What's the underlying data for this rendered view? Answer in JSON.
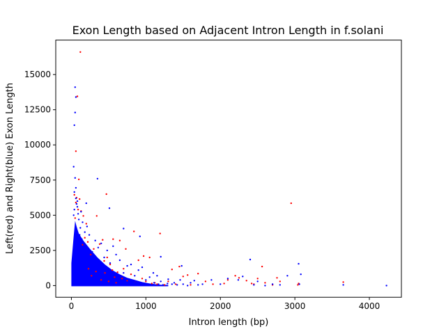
{
  "chart_data": {
    "type": "scatter",
    "title": "Exon Length based on Adjacent Intron Length in f.solani",
    "xlabel": "Intron length (bp)",
    "ylabel": "Left(red) and Right(blue) Exon Length",
    "xlim": [
      -210,
      4430
    ],
    "ylim": [
      -830,
      17450
    ],
    "xticks": [
      0,
      1000,
      2000,
      3000,
      4000
    ],
    "yticks": [
      0,
      2500,
      5000,
      7500,
      10000,
      12500,
      15000
    ],
    "grid": false,
    "series": [
      {
        "color": "#ff0000",
        "points": [
          [
            120,
            16600
          ],
          [
            80,
            13450
          ],
          [
            60,
            9550
          ],
          [
            100,
            7550
          ],
          [
            40,
            6450
          ],
          [
            70,
            6250
          ],
          [
            110,
            6150
          ],
          [
            130,
            5300
          ],
          [
            160,
            4950
          ],
          [
            200,
            4400
          ],
          [
            340,
            4950
          ],
          [
            470,
            6500
          ],
          [
            840,
            3850
          ],
          [
            1190,
            3700
          ],
          [
            2950,
            5850
          ],
          [
            560,
            3300
          ],
          [
            650,
            3200
          ],
          [
            420,
            3250
          ],
          [
            380,
            2950
          ],
          [
            730,
            2600
          ],
          [
            970,
            2100
          ],
          [
            1050,
            2000
          ],
          [
            900,
            1800
          ],
          [
            1350,
            1150
          ],
          [
            1450,
            1350
          ],
          [
            1500,
            650
          ],
          [
            1560,
            750
          ],
          [
            1700,
            850
          ],
          [
            1800,
            300
          ],
          [
            2050,
            150
          ],
          [
            2100,
            400
          ],
          [
            2200,
            700
          ],
          [
            2250,
            550
          ],
          [
            2350,
            350
          ],
          [
            2420,
            150
          ],
          [
            2500,
            500
          ],
          [
            2560,
            1350
          ],
          [
            2600,
            200
          ],
          [
            2760,
            550
          ],
          [
            3050,
            150
          ],
          [
            3040,
            50
          ],
          [
            3650,
            250
          ],
          [
            1000,
            300
          ],
          [
            1080,
            150
          ],
          [
            1120,
            200
          ],
          [
            950,
            500
          ],
          [
            860,
            250
          ],
          [
            800,
            800
          ],
          [
            750,
            350
          ],
          [
            700,
            1200
          ],
          [
            620,
            950
          ],
          [
            580,
            600
          ],
          [
            520,
            1500
          ],
          [
            480,
            2000
          ],
          [
            440,
            1750
          ],
          [
            300,
            2600
          ],
          [
            260,
            2200
          ],
          [
            220,
            3100
          ],
          [
            180,
            3400
          ],
          [
            150,
            2900
          ],
          [
            90,
            5400
          ],
          [
            60,
            5900
          ],
          [
            50,
            4800
          ],
          [
            230,
            1200
          ],
          [
            270,
            700
          ],
          [
            330,
            1000
          ],
          [
            400,
            400
          ],
          [
            450,
            900
          ],
          [
            500,
            300
          ],
          [
            550,
            1100
          ],
          [
            600,
            200
          ],
          [
            680,
            500
          ],
          [
            1150,
            100
          ],
          [
            1250,
            50
          ],
          [
            1300,
            300
          ],
          [
            1400,
            100
          ],
          [
            1600,
            50
          ],
          [
            1900,
            100
          ],
          [
            2450,
            100
          ],
          [
            2700,
            50
          ],
          [
            2800,
            300
          ]
        ]
      },
      {
        "color": "#0000ff",
        "points": [
          [
            50,
            14100
          ],
          [
            60,
            13400
          ],
          [
            50,
            12300
          ],
          [
            40,
            11400
          ],
          [
            30,
            8450
          ],
          [
            50,
            7650
          ],
          [
            350,
            7600
          ],
          [
            60,
            6950
          ],
          [
            40,
            6650
          ],
          [
            80,
            6000
          ],
          [
            200,
            5850
          ],
          [
            510,
            5500
          ],
          [
            130,
            5250
          ],
          [
            90,
            5100
          ],
          [
            700,
            4050
          ],
          [
            920,
            3500
          ],
          [
            1200,
            2050
          ],
          [
            1480,
            1400
          ],
          [
            2400,
            1850
          ],
          [
            3050,
            1550
          ],
          [
            3080,
            800
          ],
          [
            2900,
            700
          ],
          [
            4230,
            0
          ],
          [
            3650,
            50
          ],
          [
            3060,
            100
          ],
          [
            2800,
            50
          ],
          [
            2700,
            100
          ],
          [
            2600,
            0
          ],
          [
            2500,
            300
          ],
          [
            2450,
            50
          ],
          [
            2300,
            650
          ],
          [
            2240,
            400
          ],
          [
            2100,
            500
          ],
          [
            2000,
            100
          ],
          [
            1880,
            400
          ],
          [
            1760,
            100
          ],
          [
            1650,
            350
          ],
          [
            1560,
            0
          ],
          [
            1460,
            400
          ],
          [
            1380,
            200
          ],
          [
            1300,
            450
          ],
          [
            1200,
            300
          ],
          [
            1150,
            700
          ],
          [
            1100,
            900
          ],
          [
            1050,
            600
          ],
          [
            1000,
            400
          ],
          [
            950,
            1300
          ],
          [
            900,
            1100
          ],
          [
            850,
            700
          ],
          [
            800,
            1500
          ],
          [
            750,
            1400
          ],
          [
            700,
            900
          ],
          [
            650,
            1800
          ],
          [
            600,
            2200
          ],
          [
            560,
            2800
          ],
          [
            520,
            1600
          ],
          [
            480,
            2500
          ],
          [
            440,
            2000
          ],
          [
            400,
            3000
          ],
          [
            360,
            2700
          ],
          [
            320,
            3200
          ],
          [
            280,
            2400
          ],
          [
            240,
            3600
          ],
          [
            210,
            4200
          ],
          [
            180,
            3800
          ],
          [
            150,
            4500
          ],
          [
            120,
            4100
          ],
          [
            100,
            4700
          ],
          [
            80,
            5600
          ],
          [
            70,
            5800
          ],
          [
            60,
            6200
          ],
          [
            40,
            5400
          ],
          [
            30,
            5000
          ],
          [
            110,
            3600
          ],
          [
            140,
            3300
          ],
          [
            170,
            2900
          ],
          [
            190,
            2600
          ],
          [
            230,
            2200
          ],
          [
            260,
            1900
          ],
          [
            300,
            1800
          ],
          [
            330,
            1500
          ],
          [
            370,
            1400
          ],
          [
            410,
            1300
          ],
          [
            450,
            1100
          ],
          [
            490,
            1000
          ],
          [
            530,
            900
          ],
          [
            570,
            800
          ],
          [
            610,
            700
          ],
          [
            660,
            600
          ],
          [
            710,
            500
          ],
          [
            760,
            400
          ],
          [
            810,
            300
          ],
          [
            860,
            250
          ],
          [
            910,
            200
          ],
          [
            960,
            150
          ],
          [
            1010,
            100
          ],
          [
            1060,
            50
          ],
          [
            1110,
            200
          ],
          [
            1170,
            100
          ],
          [
            1230,
            50
          ],
          [
            1290,
            150
          ],
          [
            1350,
            100
          ],
          [
            1420,
            50
          ],
          [
            1500,
            100
          ],
          [
            1600,
            200
          ],
          [
            1700,
            50
          ]
        ]
      }
    ]
  }
}
